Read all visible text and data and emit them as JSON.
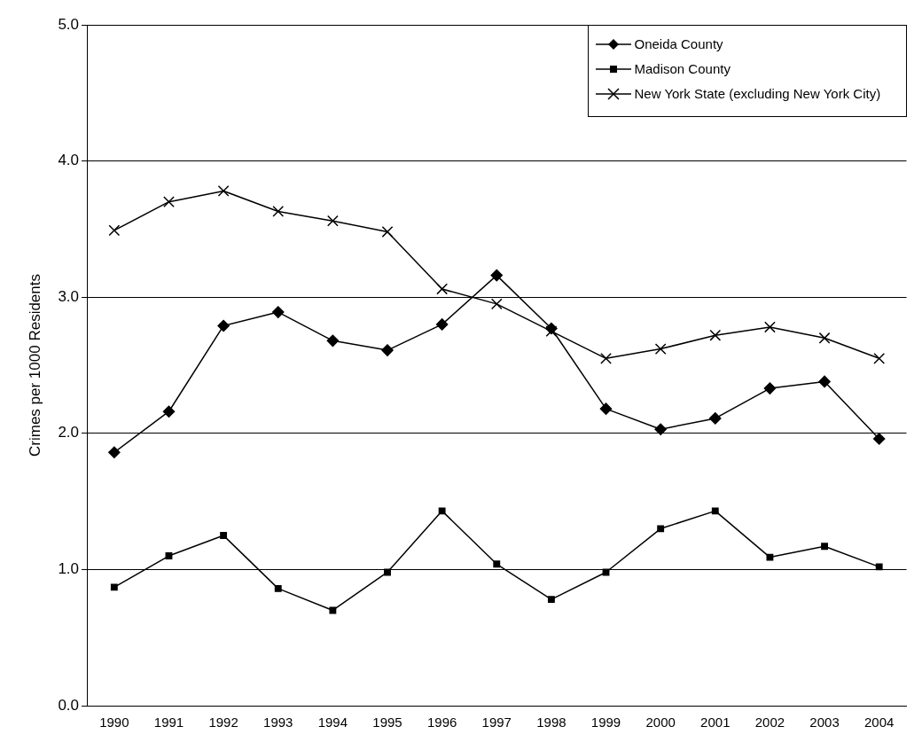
{
  "chart_data": {
    "type": "line",
    "ylabel": "Crimes per 1000 Residents",
    "categories": [
      "1990",
      "1991",
      "1992",
      "1993",
      "1994",
      "1995",
      "1996",
      "1997",
      "1998",
      "1999",
      "2000",
      "2001",
      "2002",
      "2003",
      "2004"
    ],
    "series": [
      {
        "name": "Oneida County",
        "color": "#000000",
        "marker": "diamond",
        "values": [
          1.86,
          2.16,
          2.79,
          2.89,
          2.68,
          2.61,
          2.8,
          3.16,
          2.77,
          2.18,
          2.03,
          2.11,
          2.33,
          2.38,
          1.96
        ]
      },
      {
        "name": "Madison County",
        "color": "#000000",
        "marker": "square",
        "values": [
          0.87,
          1.1,
          1.25,
          0.86,
          0.7,
          0.98,
          1.43,
          1.04,
          0.78,
          0.98,
          1.3,
          1.43,
          1.09,
          1.17,
          1.02
        ]
      },
      {
        "name": "New York State (excluding New York City)",
        "color": "#000000",
        "marker": "cross",
        "values": [
          3.49,
          3.7,
          3.78,
          3.63,
          3.56,
          3.48,
          3.06,
          2.95,
          2.75,
          2.55,
          2.62,
          2.72,
          2.78,
          2.7,
          2.55
        ]
      }
    ],
    "ylim": [
      0,
      5
    ],
    "yticks": [
      {
        "value": 0,
        "label": "0.0"
      },
      {
        "value": 1,
        "label": "1.0"
      },
      {
        "value": 2,
        "label": "2.0"
      },
      {
        "value": 3,
        "label": "3.0"
      },
      {
        "value": 4,
        "label": "4.0"
      },
      {
        "value": 5,
        "label": "5.0"
      }
    ],
    "grid": "y",
    "legend": "top right",
    "line_style": "solid"
  }
}
